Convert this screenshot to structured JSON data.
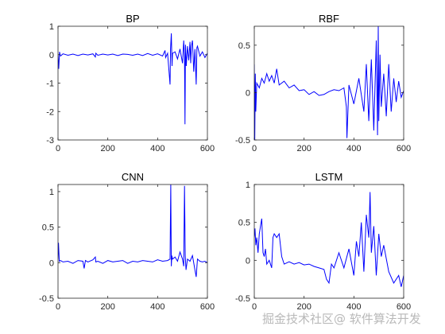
{
  "chart_data": [
    {
      "type": "line",
      "title": "BP",
      "xlim": [
        0,
        600
      ],
      "ylim": [
        -3,
        1
      ],
      "xticks": [
        0,
        200,
        400,
        600
      ],
      "yticks": [
        -3,
        -2,
        -1,
        0,
        1
      ],
      "color": "#0000ff",
      "series": [
        {
          "x": [
            0,
            3,
            6,
            10,
            20,
            40,
            60,
            80,
            100,
            120,
            140,
            150,
            152,
            160,
            180,
            200,
            220,
            240,
            260,
            280,
            300,
            320,
            340,
            360,
            380,
            400,
            420,
            430,
            432,
            440,
            450,
            452,
            455,
            458,
            460,
            470,
            480,
            490,
            500,
            505,
            508,
            510,
            512,
            515,
            520,
            525,
            530,
            533,
            536,
            540,
            545,
            550,
            555,
            558,
            560,
            570,
            580,
            590,
            600
          ],
          "y": [
            0,
            -0.5,
            0.1,
            -0.05,
            0.03,
            -0.02,
            0.02,
            -0.03,
            0.02,
            -0.01,
            0.03,
            -0.08,
            0.05,
            -0.02,
            0.02,
            -0.01,
            0.02,
            -0.03,
            0.02,
            0.01,
            -0.02,
            0.02,
            -0.03,
            0.04,
            -0.02,
            0.03,
            -0.05,
            0.15,
            -0.1,
            0.05,
            -1.05,
            0.2,
            0.75,
            -0.4,
            0.05,
            0.1,
            -0.15,
            0.2,
            -0.3,
            0.5,
            -0.1,
            -2.45,
            0.35,
            -0.4,
            0.3,
            -0.2,
            0.45,
            -0.3,
            0.3,
            0.5,
            -0.6,
            0.2,
            -1.05,
            0.25,
            0.3,
            -0.05,
            0.1,
            -0.1,
            0.05
          ]
        }
      ]
    },
    {
      "type": "line",
      "title": "RBF",
      "xlim": [
        0,
        600
      ],
      "ylim": [
        -0.5,
        0.7
      ],
      "xticks": [
        0,
        200,
        400,
        600
      ],
      "yticks": [
        -0.5,
        0,
        0.5
      ],
      "color": "#0000ff",
      "series": [
        {
          "x": [
            0,
            2,
            4,
            6,
            10,
            20,
            30,
            40,
            50,
            60,
            70,
            80,
            90,
            100,
            120,
            140,
            160,
            180,
            200,
            220,
            240,
            260,
            280,
            300,
            320,
            340,
            360,
            370,
            372,
            380,
            400,
            420,
            440,
            450,
            460,
            470,
            480,
            490,
            495,
            498,
            500,
            505,
            510,
            520,
            530,
            540,
            550,
            560,
            570,
            580,
            590,
            600
          ],
          "y": [
            0.3,
            -0.5,
            0.2,
            -0.2,
            0.1,
            0.05,
            0.15,
            0.1,
            0.2,
            0.12,
            0.18,
            0.1,
            0.25,
            0.08,
            0.12,
            0.05,
            0.08,
            0.02,
            0.03,
            -0.02,
            0.01,
            -0.03,
            -0.02,
            0.01,
            0.03,
            0.02,
            0.05,
            -0.15,
            -0.48,
            0.08,
            -0.12,
            0.15,
            -0.2,
            0.3,
            -0.3,
            0.35,
            -0.4,
            0.55,
            -0.45,
            0.7,
            -0.3,
            0.4,
            -0.15,
            0.2,
            -0.25,
            0.3,
            -0.2,
            0.15,
            -0.1,
            0.12,
            -0.05,
            0.02
          ]
        }
      ]
    },
    {
      "type": "line",
      "title": "CNN",
      "xlim": [
        0,
        600
      ],
      "ylim": [
        -0.5,
        1.1
      ],
      "xticks": [
        0,
        200,
        400,
        600
      ],
      "yticks": [
        -0.5,
        0,
        0.5,
        1
      ],
      "color": "#0000ff",
      "series": [
        {
          "x": [
            0,
            2,
            5,
            10,
            20,
            40,
            60,
            80,
            100,
            105,
            110,
            120,
            140,
            150,
            152,
            160,
            180,
            200,
            220,
            240,
            260,
            280,
            300,
            320,
            340,
            360,
            380,
            400,
            420,
            440,
            450,
            453,
            455,
            457,
            460,
            470,
            480,
            490,
            500,
            505,
            508,
            511,
            514,
            520,
            530,
            540,
            550,
            555,
            560,
            570,
            580,
            590,
            600
          ],
          "y": [
            0.05,
            0.28,
            0.02,
            0.03,
            0.01,
            0.02,
            -0.01,
            0.03,
            0.02,
            -0.08,
            0.03,
            0.01,
            0.04,
            0.08,
            0.01,
            0.02,
            -0.01,
            0.03,
            0.01,
            0.02,
            0.03,
            -0.01,
            0.02,
            0.01,
            0.03,
            0.02,
            0.01,
            0.04,
            0.02,
            0.03,
            0.05,
            1.1,
            -0.05,
            0.1,
            0.05,
            0.08,
            0.02,
            0.15,
            0.05,
            -0.05,
            1.08,
            0.1,
            -0.1,
            0.05,
            0.02,
            0.1,
            -0.1,
            -0.2,
            0.05,
            0.02,
            0.01,
            0.02,
            0.0
          ]
        }
      ]
    },
    {
      "type": "line",
      "title": "LSTM",
      "xlim": [
        0,
        600
      ],
      "ylim": [
        -0.5,
        1
      ],
      "xticks": [
        0,
        200,
        400,
        600
      ],
      "yticks": [
        -0.5,
        0,
        0.5,
        1
      ],
      "color": "#0000ff",
      "series": [
        {
          "x": [
            0,
            3,
            6,
            10,
            15,
            20,
            25,
            30,
            35,
            40,
            45,
            50,
            60,
            70,
            75,
            80,
            90,
            100,
            110,
            120,
            140,
            160,
            180,
            200,
            220,
            240,
            260,
            280,
            290,
            300,
            310,
            320,
            340,
            360,
            380,
            400,
            410,
            420,
            430,
            440,
            450,
            460,
            465,
            470,
            480,
            490,
            500,
            510,
            520,
            540,
            560,
            580,
            590,
            600
          ],
          "y": [
            0.3,
            0.42,
            0.2,
            0.3,
            0.1,
            0.35,
            0.45,
            0.55,
            0.1,
            0.05,
            0.15,
            -0.05,
            0.0,
            -0.1,
            0.3,
            0.35,
            0.3,
            0.35,
            0.05,
            -0.05,
            -0.02,
            -0.05,
            -0.03,
            -0.06,
            -0.05,
            -0.08,
            -0.1,
            -0.12,
            -0.25,
            -0.3,
            -0.05,
            -0.1,
            0.1,
            -0.1,
            0.15,
            -0.2,
            0.25,
            0.05,
            0.5,
            -0.15,
            0.6,
            0.3,
            0.9,
            0.1,
            0.45,
            -0.2,
            0.35,
            0.05,
            0.2,
            -0.15,
            -0.3,
            -0.2,
            -0.35,
            -0.2
          ]
        }
      ]
    }
  ],
  "watermark": "掘金技术社区@ 软件算法开发"
}
